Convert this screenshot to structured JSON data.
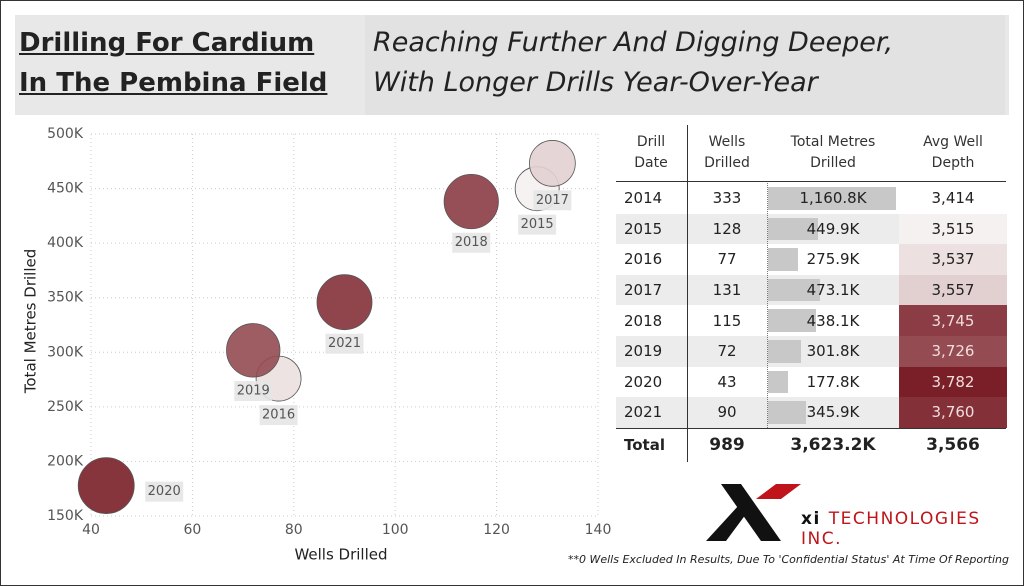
{
  "header": {
    "title_lines": [
      "Drilling For Cardium",
      "In The Pembina Field"
    ],
    "subtitle_lines": [
      "Reaching Further And Digging Deeper,",
      "With Longer Drills Year-Over-Year"
    ]
  },
  "chart_data": {
    "type": "scatter",
    "x_label": "Wells Drilled",
    "y_label": "Total Metres Drilled",
    "labels": [
      "2015",
      "2016",
      "2017",
      "2018",
      "2019",
      "2020",
      "2021"
    ],
    "x": [
      128,
      77,
      131,
      115,
      72,
      43,
      90
    ],
    "y": [
      449900,
      275900,
      473100,
      438100,
      301800,
      177800,
      345900
    ],
    "size": [
      3515,
      3537,
      3557,
      3745,
      3726,
      3782,
      3760
    ],
    "xlim": [
      40,
      140
    ],
    "xticks": [
      40,
      60,
      80,
      100,
      120,
      140
    ],
    "ylim": [
      150000,
      500000
    ],
    "yticks": [
      {
        "value": 150000,
        "label": "150K"
      },
      {
        "value": 200000,
        "label": "200K"
      },
      {
        "value": 250000,
        "label": "250K"
      },
      {
        "value": 300000,
        "label": "300K"
      },
      {
        "value": 350000,
        "label": "350K"
      },
      {
        "value": 400000,
        "label": "400K"
      },
      {
        "value": 450000,
        "label": "450K"
      },
      {
        "value": 500000,
        "label": "500K"
      }
    ],
    "grid": true,
    "color_scale": [
      "#f6f1f1",
      "#7a1f28"
    ]
  },
  "table": {
    "columns": [
      "Drill Date",
      "Wells Drilled",
      "Total Metres Drilled",
      "Avg Well Depth"
    ],
    "rows": [
      {
        "date": "2014",
        "wells": 333,
        "metres": 1160800,
        "metres_label": "1,160.8K",
        "depth": 3414,
        "depth_label": "3,414"
      },
      {
        "date": "2015",
        "wells": 128,
        "metres": 449900,
        "metres_label": "449.9K",
        "depth": 3515,
        "depth_label": "3,515"
      },
      {
        "date": "2016",
        "wells": 77,
        "metres": 275900,
        "metres_label": "275.9K",
        "depth": 3537,
        "depth_label": "3,537"
      },
      {
        "date": "2017",
        "wells": 131,
        "metres": 473100,
        "metres_label": "473.1K",
        "depth": 3557,
        "depth_label": "3,557"
      },
      {
        "date": "2018",
        "wells": 115,
        "metres": 438100,
        "metres_label": "438.1K",
        "depth": 3745,
        "depth_label": "3,745"
      },
      {
        "date": "2019",
        "wells": 72,
        "metres": 301800,
        "metres_label": "301.8K",
        "depth": 3726,
        "depth_label": "3,726"
      },
      {
        "date": "2020",
        "wells": 43,
        "metres": 177800,
        "metres_label": "177.8K",
        "depth": 3782,
        "depth_label": "3,782"
      },
      {
        "date": "2021",
        "wells": 90,
        "metres": 345900,
        "metres_label": "345.9K",
        "depth": 3760,
        "depth_label": "3,760"
      }
    ],
    "total": {
      "label": "Total",
      "wells": 989,
      "metres_label": "3,623.2K",
      "depth_label": "3,566"
    }
  },
  "logo": {
    "mark": "xi",
    "text": "TECHNOLOGIES INC."
  },
  "footnote": "**0 Wells Excluded In Results, Due To 'Confidential Status' At Time Of Reporting"
}
